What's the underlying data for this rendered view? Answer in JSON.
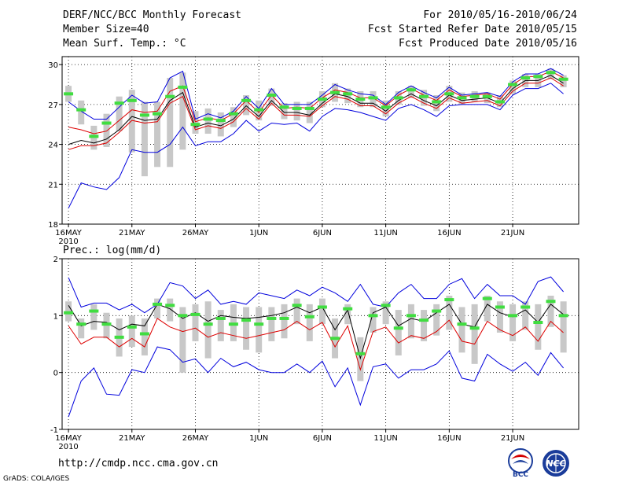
{
  "header": {
    "title": "DERF/NCC/BCC Monthly Forecast",
    "member_size": "Member Size=40",
    "variable": "Mean Surf. Temp.: °C",
    "for_range": "For 2010/05/16-2010/06/24",
    "fcst_started": "Fcst Started Refer Date 2010/05/15",
    "fcst_produced": "Fcst Produced Date 2010/05/16"
  },
  "footer": {
    "url": "http://cmdp.ncc.cma.gov.cn",
    "grads": "GrADS: COLA/IGES",
    "logo_bcc": "BCC",
    "logo_ncc": "NCC"
  },
  "colors": {
    "min_max": "#0000dd",
    "mean": "#000000",
    "ensemble_alt": "#dd0000",
    "median": "#40dd40",
    "spread": "#c8c8c8"
  },
  "chart_data": [
    {
      "type": "line",
      "title": "Mean Surf. Temp.: °C",
      "x_tick_labels": [
        "16MAY",
        "21MAY",
        "26MAY",
        "1JUN",
        "6JUN",
        "11JUN",
        "16JUN",
        "21JUN"
      ],
      "x_year_label": "2010",
      "x_days": 40,
      "ylim": [
        18,
        30.6
      ],
      "yticks": [
        18,
        21,
        24,
        27,
        30
      ],
      "series": [
        {
          "name": "max",
          "values": [
            27.2,
            26.5,
            25.9,
            25.9,
            26.8,
            27.7,
            27.1,
            27.2,
            29.0,
            29.5,
            25.9,
            26.3,
            26.0,
            26.5,
            27.6,
            26.7,
            28.2,
            27.0,
            27.0,
            27.0,
            27.7,
            28.5,
            28.1,
            27.8,
            27.7,
            27.0,
            27.9,
            28.4,
            27.9,
            27.5,
            28.3,
            27.7,
            27.8,
            27.9,
            27.6,
            28.7,
            29.3,
            29.3,
            29.7,
            29.2
          ]
        },
        {
          "name": "upper",
          "values": [
            25.3,
            25.1,
            24.8,
            25.0,
            25.8,
            26.6,
            26.4,
            26.5,
            28.0,
            28.4,
            25.7,
            26.0,
            25.8,
            26.3,
            27.3,
            26.4,
            27.7,
            26.7,
            26.8,
            26.7,
            27.5,
            28.1,
            27.9,
            27.5,
            27.5,
            26.9,
            27.7,
            28.2,
            27.7,
            27.3,
            28.1,
            27.6,
            27.7,
            27.8,
            27.4,
            28.5,
            29.1,
            29.1,
            29.5,
            29.0
          ]
        },
        {
          "name": "mean",
          "values": [
            24.0,
            24.3,
            24.1,
            24.4,
            25.1,
            26.1,
            25.8,
            25.9,
            27.3,
            27.9,
            25.3,
            25.6,
            25.4,
            25.9,
            26.9,
            26.1,
            27.3,
            26.4,
            26.4,
            26.2,
            27.1,
            27.8,
            27.6,
            27.1,
            27.1,
            26.5,
            27.3,
            27.8,
            27.3,
            26.9,
            27.7,
            27.3,
            27.4,
            27.5,
            27.1,
            28.2,
            28.8,
            28.8,
            29.2,
            28.6
          ]
        },
        {
          "name": "lower",
          "values": [
            23.6,
            23.9,
            23.9,
            24.1,
            24.9,
            25.8,
            25.6,
            25.7,
            27.1,
            27.6,
            25.1,
            25.4,
            25.2,
            25.7,
            26.7,
            25.9,
            27.1,
            26.2,
            26.2,
            26.1,
            26.9,
            27.6,
            27.4,
            26.9,
            26.9,
            26.3,
            27.1,
            27.6,
            27.1,
            26.7,
            27.5,
            27.1,
            27.2,
            27.3,
            26.9,
            28.0,
            28.6,
            28.6,
            29.0,
            28.4
          ]
        },
        {
          "name": "min",
          "values": [
            19.2,
            21.1,
            20.8,
            20.6,
            21.5,
            23.6,
            23.4,
            23.4,
            24.0,
            25.3,
            23.9,
            24.2,
            24.2,
            24.8,
            25.8,
            25.0,
            25.6,
            25.5,
            25.6,
            25.0,
            26.1,
            26.7,
            26.6,
            26.4,
            26.1,
            25.8,
            26.7,
            27.0,
            26.6,
            26.1,
            26.9,
            27.0,
            27.0,
            27.0,
            26.6,
            27.7,
            28.2,
            28.2,
            28.6,
            27.8
          ]
        },
        {
          "name": "median",
          "values": [
            27.8,
            26.6,
            24.6,
            25.6,
            27.1,
            27.3,
            26.2,
            26.3,
            27.6,
            28.3,
            25.5,
            25.9,
            25.8,
            26.3,
            27.3,
            26.6,
            27.7,
            26.8,
            26.7,
            26.7,
            27.4,
            27.9,
            27.8,
            27.4,
            27.5,
            26.8,
            27.5,
            28.1,
            27.6,
            27.2,
            27.8,
            27.5,
            27.6,
            27.6,
            27.2,
            28.5,
            29.0,
            29.1,
            29.4,
            28.9
          ]
        },
        {
          "name": "spread_top",
          "values": [
            28.4,
            27.3,
            25.4,
            26.3,
            27.6,
            28.1,
            27.2,
            27.2,
            29.0,
            29.4,
            26.5,
            26.7,
            26.4,
            26.8,
            27.7,
            27.3,
            28.2,
            27.1,
            27.2,
            27.2,
            28.0,
            28.6,
            28.2,
            28.0,
            28.0,
            27.3,
            28.0,
            28.4,
            28.1,
            27.7,
            28.4,
            27.9,
            28.0,
            27.9,
            27.7,
            28.8,
            29.3,
            29.3,
            29.7,
            29.2
          ]
        },
        {
          "name": "spread_bottom",
          "values": [
            27.2,
            25.5,
            23.6,
            23.8,
            25.0,
            23.4,
            21.6,
            22.3,
            22.3,
            23.6,
            24.8,
            24.8,
            24.6,
            25.3,
            26.2,
            25.8,
            26.9,
            25.9,
            25.8,
            25.6,
            26.8,
            27.2,
            27.1,
            26.8,
            26.8,
            26.1,
            27.0,
            27.5,
            26.9,
            26.5,
            27.2,
            27.0,
            27.2,
            27.1,
            26.8,
            27.8,
            28.3,
            28.3,
            28.9,
            28.3
          ]
        }
      ]
    },
    {
      "type": "line",
      "title": "Prec.: log(mm/d)",
      "x_tick_labels": [
        "16MAY",
        "21MAY",
        "26MAY",
        "1JUN",
        "6JUN",
        "11JUN",
        "16JUN",
        "21JUN"
      ],
      "x_year_label": "2010",
      "x_days": 40,
      "ylim": [
        -1,
        2
      ],
      "yticks": [
        -1,
        0,
        1,
        2
      ],
      "series": [
        {
          "name": "max",
          "values": [
            1.67,
            1.15,
            1.22,
            1.22,
            1.1,
            1.2,
            1.05,
            1.2,
            1.58,
            1.52,
            1.3,
            1.45,
            1.2,
            1.25,
            1.2,
            1.4,
            1.35,
            1.3,
            1.45,
            1.35,
            1.5,
            1.4,
            1.25,
            1.55,
            1.2,
            1.15,
            1.4,
            1.55,
            1.3,
            1.3,
            1.55,
            1.65,
            1.3,
            1.55,
            1.35,
            1.35,
            1.2,
            1.6,
            1.68,
            1.42
          ]
        },
        {
          "name": "mean",
          "values": [
            1.18,
            0.82,
            0.9,
            0.88,
            0.75,
            0.85,
            0.82,
            1.2,
            1.12,
            0.95,
            1.05,
            0.9,
            1.0,
            0.97,
            0.95,
            0.97,
            1.0,
            1.05,
            1.15,
            1.05,
            1.15,
            0.75,
            1.1,
            0.25,
            1.05,
            1.15,
            0.82,
            0.95,
            0.9,
            1.05,
            1.2,
            0.85,
            0.8,
            1.2,
            1.05,
            0.98,
            1.1,
            0.88,
            1.2,
            1.02
          ]
        },
        {
          "name": "lower",
          "values": [
            0.82,
            0.5,
            0.62,
            0.62,
            0.45,
            0.6,
            0.45,
            0.95,
            0.8,
            0.72,
            0.78,
            0.62,
            0.7,
            0.65,
            0.6,
            0.65,
            0.7,
            0.75,
            0.9,
            0.75,
            0.88,
            0.45,
            0.82,
            0.05,
            0.72,
            0.8,
            0.52,
            0.65,
            0.6,
            0.72,
            0.92,
            0.55,
            0.5,
            0.9,
            0.75,
            0.65,
            0.8,
            0.55,
            0.9,
            0.7
          ]
        },
        {
          "name": "min",
          "values": [
            -0.78,
            -0.15,
            0.08,
            -0.38,
            -0.4,
            0.05,
            0.0,
            0.45,
            0.4,
            0.18,
            0.24,
            0.0,
            0.25,
            0.1,
            0.18,
            0.05,
            0.0,
            0.0,
            0.15,
            0.0,
            0.2,
            -0.25,
            0.08,
            -0.57,
            0.1,
            0.15,
            -0.1,
            0.05,
            0.05,
            0.15,
            0.38,
            -0.1,
            -0.15,
            0.32,
            0.15,
            0.02,
            0.18,
            -0.05,
            0.35,
            0.08
          ]
        },
        {
          "name": "median",
          "values": [
            1.05,
            0.85,
            1.08,
            0.85,
            0.62,
            0.8,
            0.68,
            1.2,
            1.18,
            1.0,
            1.02,
            0.85,
            0.95,
            0.85,
            0.92,
            0.85,
            0.95,
            0.95,
            1.18,
            0.98,
            1.15,
            0.6,
            1.12,
            0.33,
            1.0,
            1.18,
            0.78,
            1.0,
            0.92,
            1.08,
            1.28,
            0.85,
            0.78,
            1.3,
            1.15,
            1.0,
            1.15,
            0.88,
            1.25,
            1.0
          ]
        },
        {
          "name": "spread_top",
          "values": [
            1.25,
            0.95,
            1.2,
            1.05,
            0.95,
            1.0,
            0.95,
            1.3,
            1.3,
            1.15,
            1.2,
            1.25,
            1.1,
            1.2,
            1.15,
            1.15,
            1.15,
            1.2,
            1.3,
            1.2,
            1.3,
            0.95,
            1.2,
            0.62,
            1.15,
            1.25,
            1.1,
            1.2,
            1.1,
            1.2,
            1.35,
            1.15,
            1.2,
            1.35,
            1.25,
            1.2,
            1.25,
            1.2,
            1.35,
            1.25
          ]
        },
        {
          "name": "spread_bottom",
          "values": [
            0.9,
            0.6,
            0.75,
            0.6,
            0.28,
            0.45,
            0.3,
            0.95,
            0.9,
            0.0,
            0.55,
            0.25,
            0.55,
            0.55,
            0.4,
            0.35,
            0.55,
            0.6,
            0.85,
            0.55,
            0.85,
            0.25,
            0.85,
            -0.15,
            0.7,
            0.85,
            0.3,
            0.6,
            0.55,
            0.65,
            0.75,
            0.35,
            0.15,
            0.9,
            0.7,
            0.55,
            0.75,
            0.4,
            0.8,
            0.35
          ]
        }
      ]
    }
  ]
}
